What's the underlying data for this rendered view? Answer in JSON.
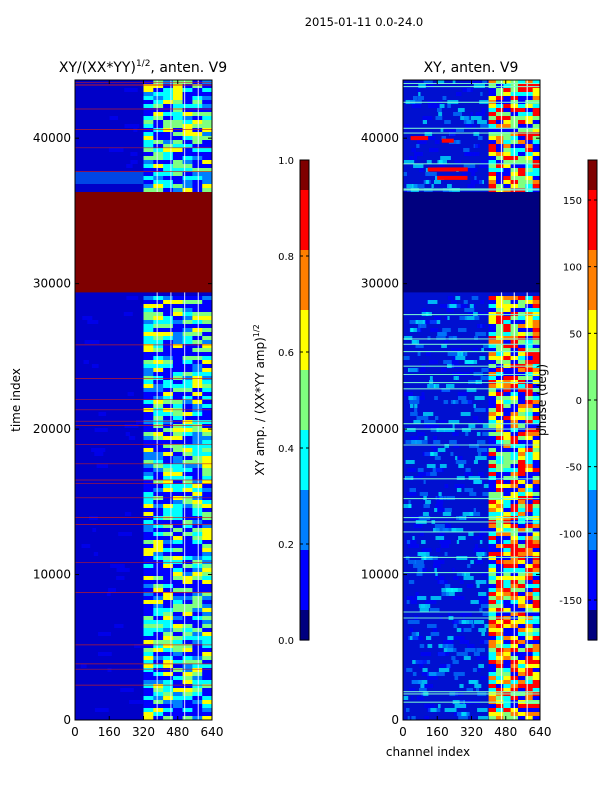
{
  "figure": {
    "suptitle": "2015-01-11 0.0-24.0"
  },
  "colors": {
    "jet": [
      "#00007f",
      "#0000ff",
      "#007fff",
      "#00ffff",
      "#7fff7f",
      "#ffff00",
      "#ff7f00",
      "#ff0000",
      "#7f0000"
    ],
    "maroon_block": "#7f0000",
    "flag_line_left": "#c81e1e",
    "flag_line_right": "#7fffd4"
  },
  "chart_data": [
    {
      "type": "heatmap",
      "title": "XY/(XX*YY)",
      "title_sup": "1/2",
      "title_suffix": ", anten. V9",
      "xlabel": "",
      "ylabel": "time index",
      "xlim": [
        0,
        640
      ],
      "ylim": [
        0,
        44000
      ],
      "xticks": [
        "0",
        "160",
        "320",
        "480",
        "640"
      ],
      "yticks": [
        "0",
        "10000",
        "20000",
        "30000",
        "40000"
      ],
      "saturated_band": {
        "from": 29400,
        "to": 36300,
        "value": 1.0
      },
      "active_channels": [
        320,
        640
      ],
      "colorbar": {
        "label": "XY amp. / (XX*YY amp)",
        "label_sup": "1/2",
        "range": [
          0.0,
          1.0
        ],
        "ticks": [
          "0.0",
          "0.2",
          "0.4",
          "0.6",
          "0.8",
          "1.0"
        ]
      }
    },
    {
      "type": "heatmap",
      "title": "XY, anten. V9",
      "xlabel": "channel index",
      "ylabel": "",
      "xlim": [
        0,
        640
      ],
      "ylim": [
        0,
        44000
      ],
      "xticks": [
        "0",
        "160",
        "320",
        "480",
        "640"
      ],
      "yticks": [
        "0",
        "10000",
        "20000",
        "30000",
        "40000"
      ],
      "constant_band": {
        "from": 29400,
        "to": 36300,
        "value": -180
      },
      "active_channels": [
        400,
        640
      ],
      "colorbar": {
        "label": "phase (deg)",
        "range": [
          -180,
          180
        ],
        "ticks": [
          "-150",
          "-100",
          "-50",
          "0",
          "50",
          "100",
          "150"
        ]
      }
    }
  ]
}
